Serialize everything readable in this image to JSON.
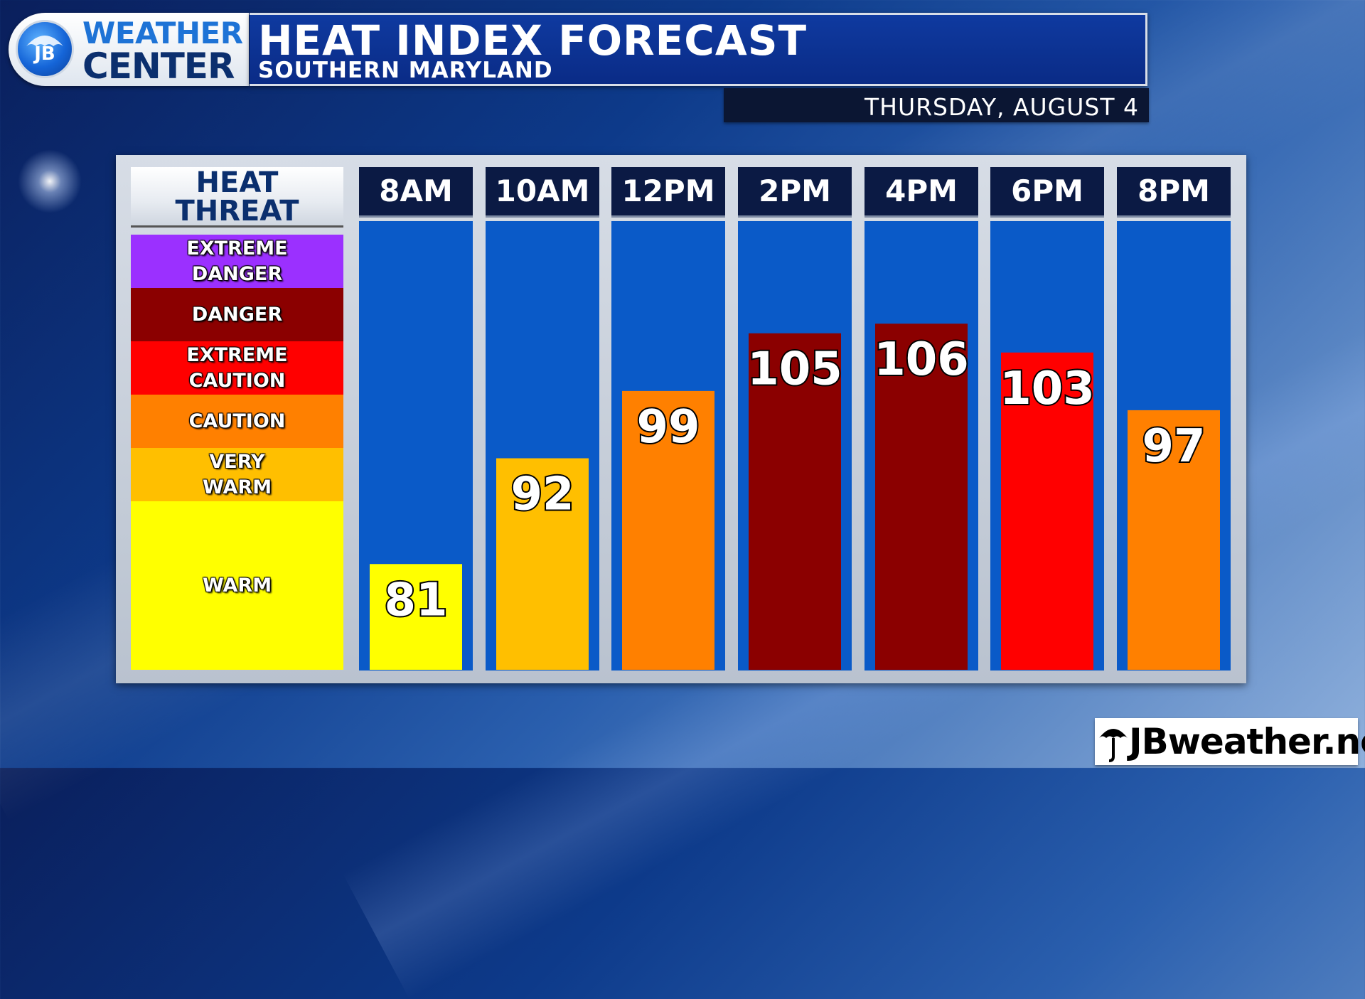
{
  "header": {
    "logo_line1": "WEATHER",
    "logo_line2": "CENTER",
    "logo_initials": "JB",
    "title": "HEAT INDEX FORECAST",
    "subtitle": "SOUTHERN MARYLAND",
    "date": "THURSDAY, AUGUST 4"
  },
  "legend": {
    "header_line1": "HEAT",
    "header_line2": "THREAT",
    "bands": [
      {
        "line1": "EXTREME",
        "line2": "DANGER",
        "color": "#9b30ff"
      },
      {
        "line1": "DANGER",
        "line2": "",
        "color": "#8b0000"
      },
      {
        "line1": "EXTREME",
        "line2": "CAUTION",
        "color": "#ff0000"
      },
      {
        "line1": "CAUTION",
        "line2": "",
        "color": "#ff8000"
      },
      {
        "line1": "VERY",
        "line2": "WARM",
        "color": "#ffbf00"
      },
      {
        "line1": "WARM",
        "line2": "",
        "color": "#ffff00"
      }
    ]
  },
  "brand": {
    "site": "JBweather.net"
  },
  "chart_data": {
    "type": "bar",
    "title": "HEAT INDEX FORECAST",
    "subtitle": "SOUTHERN MARYLAND",
    "categories": [
      "8AM",
      "10AM",
      "12PM",
      "2PM",
      "4PM",
      "6PM",
      "8PM"
    ],
    "values": [
      81,
      92,
      99,
      105,
      106,
      103,
      97
    ],
    "bar_colors": [
      "#ffff00",
      "#ffbf00",
      "#ff8000",
      "#8b0000",
      "#8b0000",
      "#ff0000",
      "#ff8000"
    ],
    "column_color": "#0a5ac8",
    "ylim": [
      70,
      116
    ]
  }
}
